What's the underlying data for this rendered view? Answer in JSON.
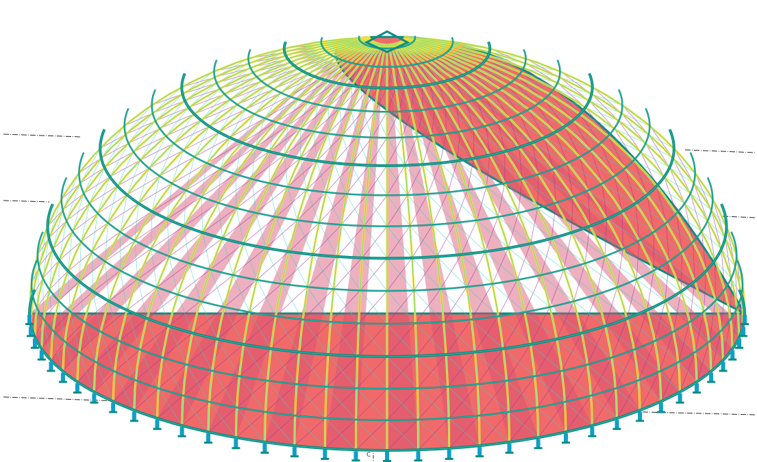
{
  "viewport": {
    "background": "#ffffff",
    "grid_label": "C"
  },
  "model": {
    "type": "steel-dome-structural-model",
    "meridian_ribs": 72,
    "ring_beams": 14,
    "colors": {
      "cladding": "#f06a6a",
      "cladding_band": "#d85070",
      "ring_beam": "#0e8c82",
      "ring_beam_light": "#3fd6c2",
      "meridian_rib": "#ffe52a",
      "purlin": "#35d3c8",
      "bracing": "#a23aa8",
      "base_bracket": "#0ea0c8",
      "grid_line": "#222222"
    }
  }
}
